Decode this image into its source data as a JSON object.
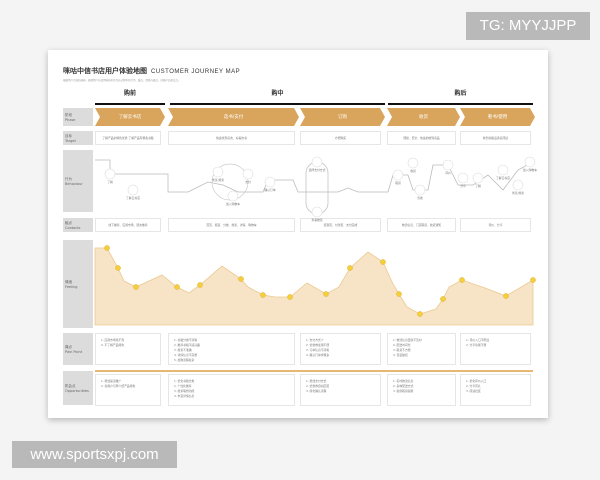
{
  "watermarks": {
    "top": "TG: MYYJJPP",
    "bottom": "www.sportsxpj.com"
  },
  "title": {
    "cn": "咪咕中信书店用户体验地图",
    "en": "CUSTOMER JOURNEY MAP",
    "subtitle": "根据用户访谈和调研，梳理用户在使用咪咕中信书店过程中的行为、触点、情绪与痛点，挖掘产品机会点。"
  },
  "stages": [
    {
      "label": "购前"
    },
    {
      "label": "购中"
    },
    {
      "label": "购后"
    }
  ],
  "rows": [
    {
      "cn": "阶段",
      "en": "Phase"
    },
    {
      "cn": "目标",
      "en": "Target"
    },
    {
      "cn": "行为",
      "en": "Behaviour"
    },
    {
      "cn": "触点",
      "en": "Contacts"
    },
    {
      "cn": "情绪",
      "en": "Feeling"
    },
    {
      "cn": "痛点",
      "en": "Pain Point"
    },
    {
      "cn": "机会点",
      "en": "Opportunities"
    }
  ],
  "phases": [
    {
      "label": "了解云书店"
    },
    {
      "label": "选书/支付"
    },
    {
      "label": "订购"
    },
    {
      "label": "收货"
    },
    {
      "label": "看书/使用"
    }
  ],
  "targets": [
    "了解产品的特色优势 了解产品有哪些书籍",
    "快速找到喜欢、好看的书",
    "方便购买",
    "便捷、安全、快速的收到商品",
    "收到书籍后满意阅读"
  ],
  "contacts": [
    "线下推荐、应用市场、朋友推荐",
    "首页、频道、分类、搜索、详情、购物车",
    "结算页、付款页、支付完成",
    "物流信息、门店取货、收货通知",
    "评价、分享"
  ],
  "pains": [
    [
      "1. 应用市场找不到",
      "2. 不了解产品特色"
    ],
    [
      "1. 书籍分类不清晰",
      "2. 推荐书籍不感兴趣",
      "3. 搜索不准确",
      "4. 详情信息不完整",
      "5. 加购流程复杂"
    ],
    [
      "1. 支付方式少",
      "2. 优惠券使用不便",
      "3. 订单信息不清晰",
      "4. 确认订单步骤多"
    ],
    [
      "1. 物流信息更新不及时",
      "2. 配送时间长",
      "3. 取货不方便",
      "4. 包装破损"
    ],
    [
      "1. 评价入口不明显",
      "2. 分享功能不便"
    ]
  ],
  "opportunities": [
    [
      "1. 增加渠道推广",
      "2. 新用户引导介绍产品特色"
    ],
    [
      "1. 优化书籍分类",
      "2. 个性化推荐",
      "3. 搜索联想功能",
      "4. 丰富详情信息"
    ],
    [
      "1. 增加支付方式",
      "2. 优惠券自动匹配",
      "3. 简化确认流程"
    ],
    [
      "1. 实时物流信息",
      "2. 多种配送方式",
      "3. 提供取货提醒"
    ],
    [
      "1. 优化评价入口",
      "2. 分享有礼",
      "3. 阅读社区"
    ]
  ],
  "behaviours": [
    "了解",
    "了解云书店",
    "浏览/搜索",
    "加入购物车",
    "支付",
    "确认订单",
    "选择支付方式",
    "查看物流",
    "取货",
    "收货",
    "签收",
    "评价",
    "分享"
  ],
  "colors": {
    "accent": "#d9a55c",
    "emotion_fill": "#f7e4c6",
    "label_bg": "#dcdcdc"
  }
}
